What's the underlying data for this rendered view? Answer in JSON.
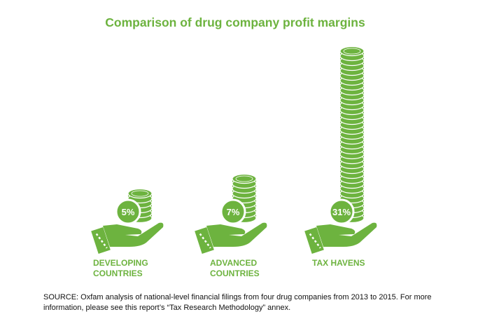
{
  "chart_data": {
    "type": "bar",
    "title": "Comparison of drug company profit margins",
    "categories": [
      "DEVELOPING\nCOUNTRIES",
      "ADVANCED\nCOUNTRIES",
      "TAX HAVENS"
    ],
    "values": [
      5,
      7,
      31
    ],
    "value_labels": [
      "5%",
      "7%",
      "31%"
    ],
    "unit": "%",
    "grid": false,
    "legend": "none",
    "source": "SOURCE: Oxfam analysis of national-level financial filings from four drug companies from 2013 to 2015. For more information, please see this report’s “Tax Research Methodology” annex."
  },
  "colors": {
    "primary": "#6db33f",
    "coin_stroke": "#ffffff",
    "text": "#111111"
  },
  "icons": [
    "coin-stack-icon",
    "hand-icon"
  ]
}
